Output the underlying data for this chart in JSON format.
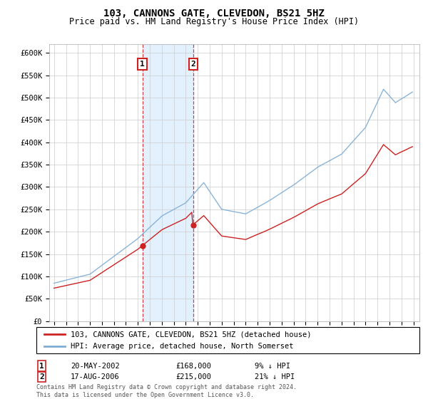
{
  "title": "103, CANNONS GATE, CLEVEDON, BS21 5HZ",
  "subtitle": "Price paid vs. HM Land Registry's House Price Index (HPI)",
  "ylabel_ticks": [
    "£0",
    "£50K",
    "£100K",
    "£150K",
    "£200K",
    "£250K",
    "£300K",
    "£350K",
    "£400K",
    "£450K",
    "£500K",
    "£550K",
    "£600K"
  ],
  "ylim": [
    0,
    620000
  ],
  "ytick_values": [
    0,
    50000,
    100000,
    150000,
    200000,
    250000,
    300000,
    350000,
    400000,
    450000,
    500000,
    550000,
    600000
  ],
  "hpi_color": "#7eadd4",
  "price_color": "#cc2222",
  "sale1_year_val": 2002.37,
  "sale1_price": 168000,
  "sale2_year_val": 2006.62,
  "sale2_price": 215000,
  "marker1_label": "1",
  "marker1_date": "20-MAY-2002",
  "marker1_price": 168000,
  "marker1_hpi_pct": "9% ↓ HPI",
  "marker2_label": "2",
  "marker2_date": "17-AUG-2006",
  "marker2_price": 215000,
  "marker2_hpi_pct": "21% ↓ HPI",
  "legend_line1": "103, CANNONS GATE, CLEVEDON, BS21 5HZ (detached house)",
  "legend_line2": "HPI: Average price, detached house, North Somerset",
  "footer": "Contains HM Land Registry data © Crown copyright and database right 2024.\nThis data is licensed under the Open Government Licence v3.0.",
  "background_color": "#ffffff",
  "plot_bg_color": "#ffffff",
  "grid_color": "#cccccc",
  "shade_color": "#ddeeff"
}
